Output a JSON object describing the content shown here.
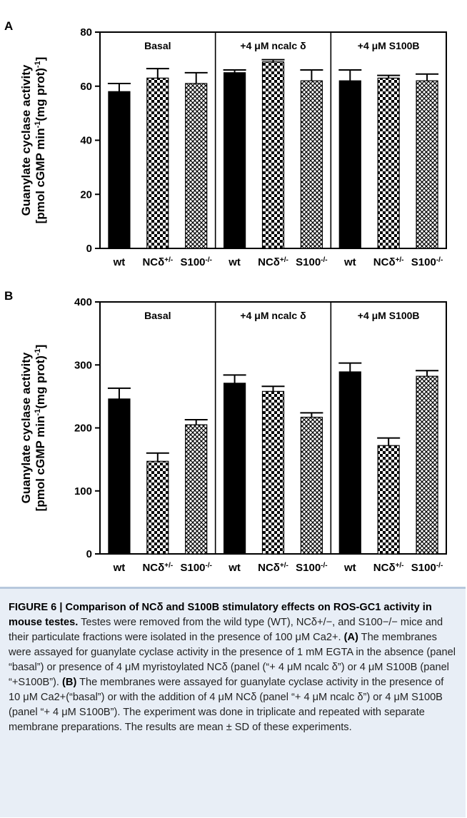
{
  "chart_data": [
    {
      "panel": "A",
      "type": "bar",
      "ylabel_line1": "Guanylate cyclase activity",
      "ylabel_line2": "[pmol cGMP min-1(mg prot)-1]",
      "ylim": [
        0,
        80
      ],
      "yticks": [
        0,
        20,
        40,
        60,
        80
      ],
      "categories": [
        "wt",
        "NCδ+/-",
        "S100-/-",
        "wt",
        "NCδ+/-",
        "S100-/-",
        "wt",
        "NCδ+/-",
        "S100-/-"
      ],
      "groups": [
        "Basal",
        "+4 μM ncalc δ",
        "+4 μM S100B"
      ],
      "values": [
        58,
        63,
        61,
        65,
        69,
        62,
        62,
        63,
        62
      ],
      "errors": [
        3,
        3.5,
        4,
        1,
        0.8,
        4,
        4,
        1,
        2.5
      ],
      "patterns": [
        "solid",
        "checker",
        "crosshatch",
        "solid",
        "checker",
        "crosshatch",
        "solid",
        "checker",
        "crosshatch"
      ]
    },
    {
      "panel": "B",
      "type": "bar",
      "ylabel_line1": "Guanylate cyclase activity",
      "ylabel_line2": "[pmol cGMP min-1(mg prot)-1]",
      "ylim": [
        0,
        400
      ],
      "yticks": [
        0,
        100,
        200,
        300,
        400
      ],
      "categories": [
        "wt",
        "NCδ+/-",
        "S100-/-",
        "wt",
        "NCδ+/-",
        "S100-/-",
        "wt",
        "NCδ+/-",
        "S100-/-"
      ],
      "groups": [
        "Basal",
        "+4 μM ncalc δ",
        "+4 μM S100B"
      ],
      "values": [
        246,
        147,
        205,
        271,
        258,
        217,
        289,
        172,
        282
      ],
      "errors": [
        17,
        13,
        8,
        13,
        8,
        7,
        14,
        12,
        9
      ],
      "patterns": [
        "solid",
        "checker",
        "crosshatch",
        "solid",
        "checker",
        "crosshatch",
        "solid",
        "checker",
        "crosshatch"
      ]
    }
  ],
  "caption": {
    "label": "FIGURE 6 | Comparison of NCδ and S100B stimulatory effects on ROS-GC1 activity in mouse testes.",
    "text1": "Testes were removed from the wild type (WT), NCδ+/−, and S100−/− mice and their particulate fractions were isolated in the presence of 100 μM Ca2+.",
    "a_label": "(A)",
    "a_text": "The membranes were assayed for guanylate cyclase activity in the presence of 1 mM EGTA in the absence (panel “basal”) or presence of 4 μM myristoylated NCδ (panel (“+ 4 μM ncalc δ”) or 4 μM S100B (panel “+S100B”).",
    "b_label": "(B)",
    "b_text": "The membranes were assayed for guanylate cyclase activity in the presence of 10 μM Ca2+(“basal”) or with the addition of 4 μM NCδ (panel “+ 4 μM ncalc δ”) or 4 μM S100B (panel “+ 4 μM S100B”). The experiment was done in triplicate and repeated with separate membrane preparations. The results are mean ± SD of these experiments."
  }
}
